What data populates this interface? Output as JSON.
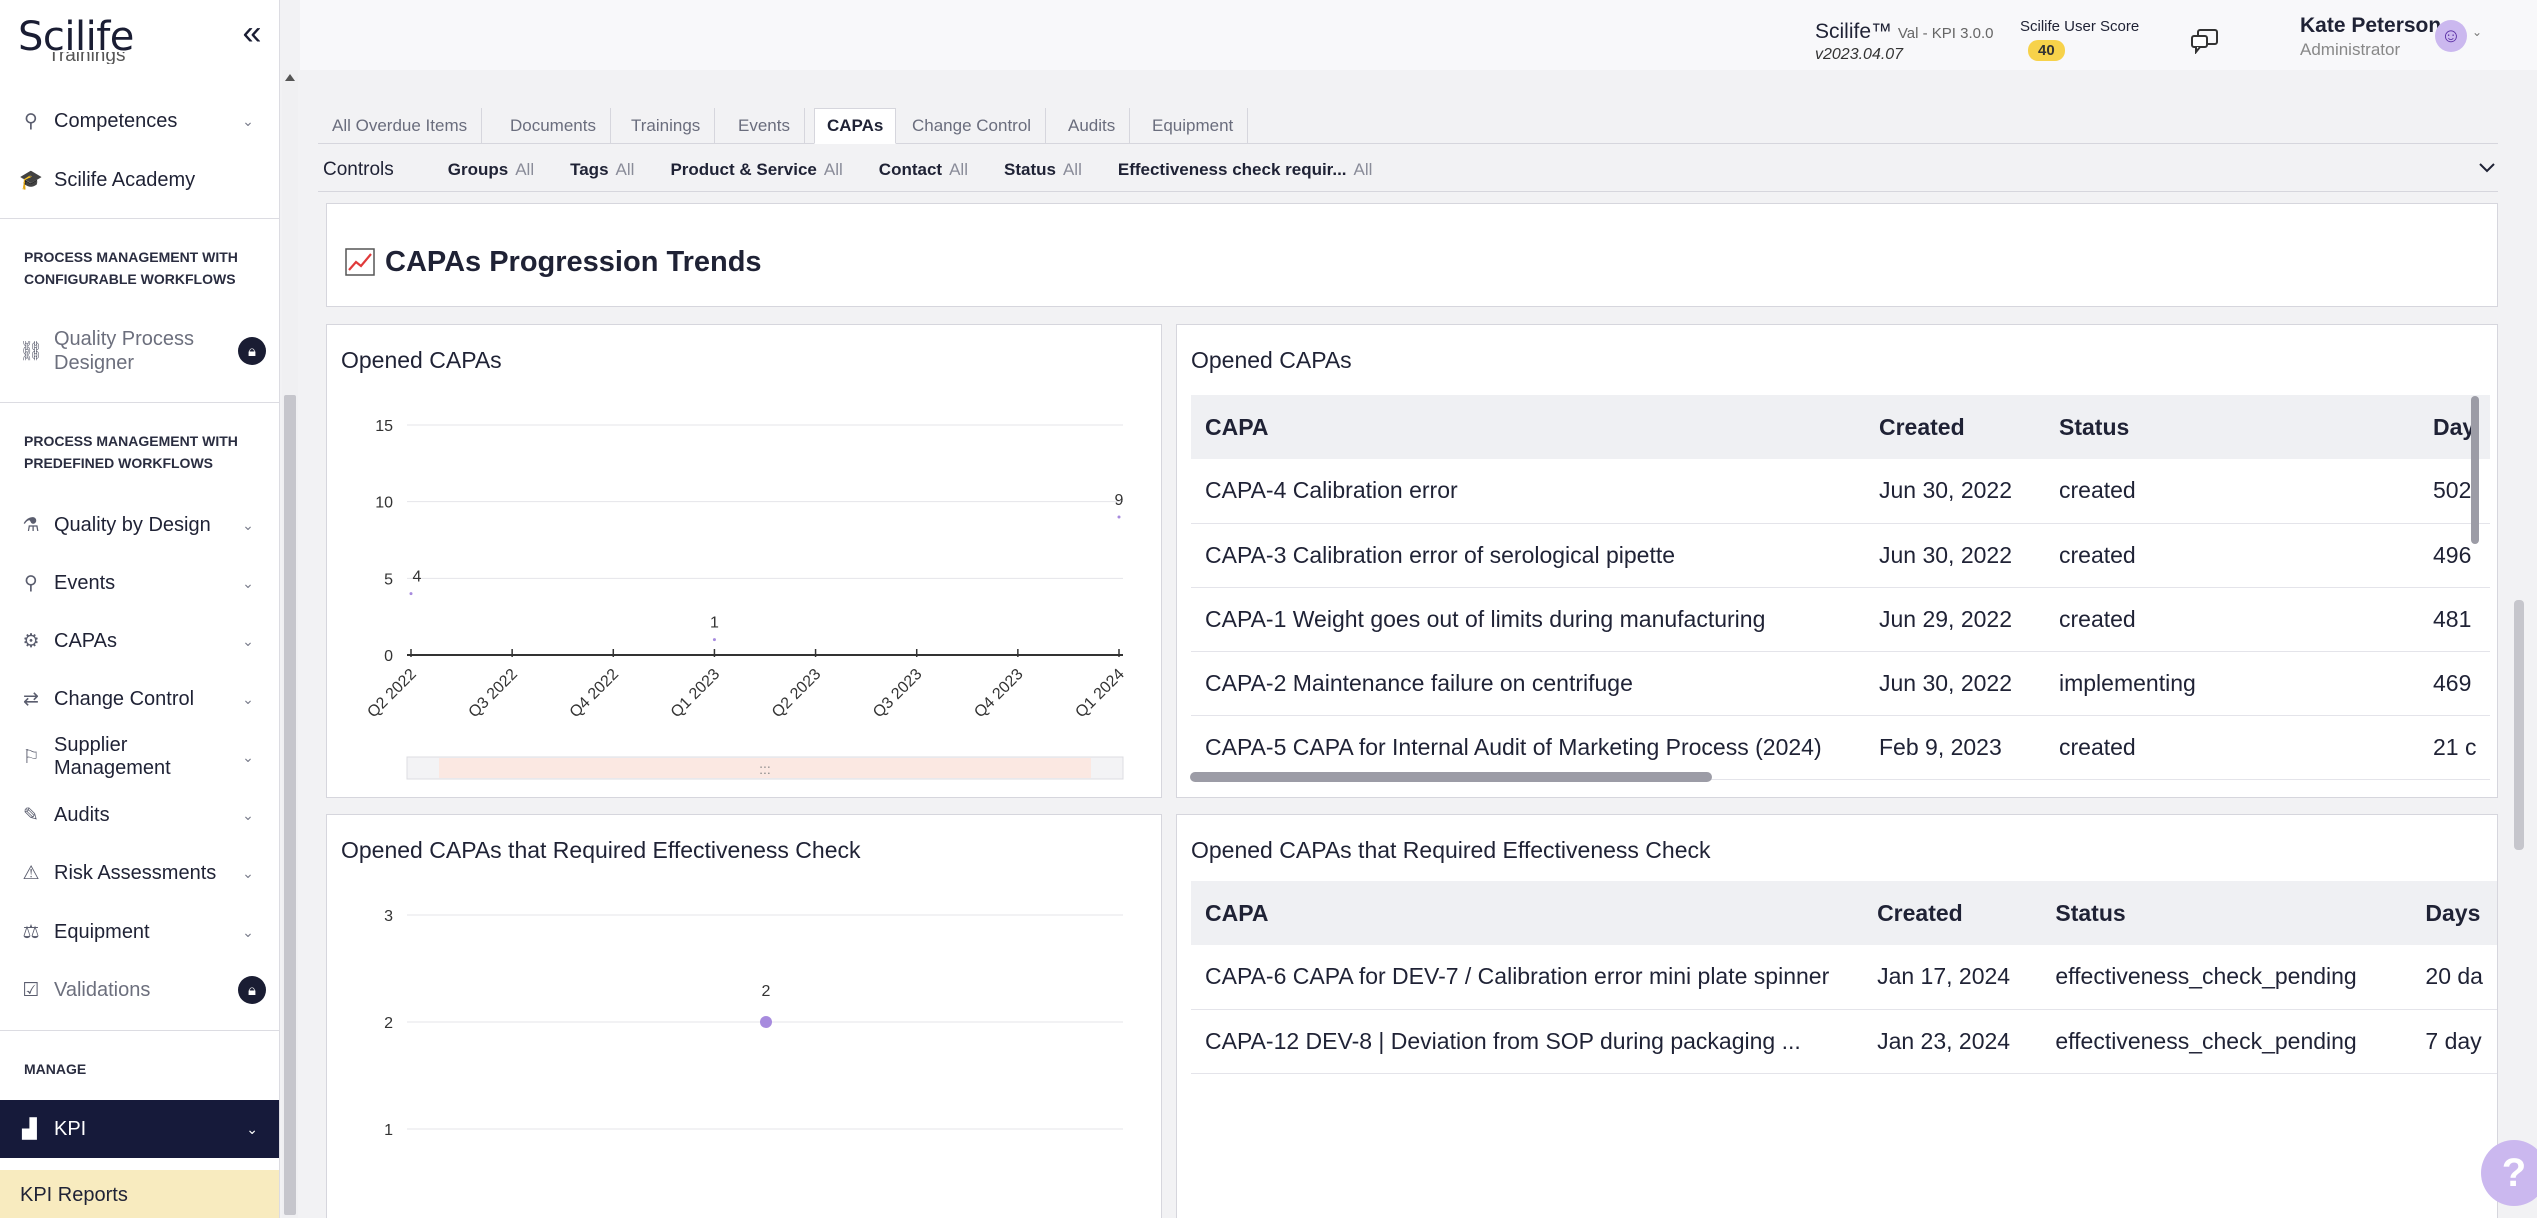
{
  "app": {
    "logo": "Scilife",
    "version_line": "Scilife™",
    "version_sub": "Val - KPI 3.0.0",
    "version_date": "v2023.04.07",
    "score_label": "Scilife User Score",
    "score_value": "40"
  },
  "user": {
    "name": "Kate Peterson",
    "role": "Administrator"
  },
  "sidebar": {
    "cut_item": "Trainings",
    "items": [
      {
        "label": "Competences",
        "icon": "competences-icon"
      },
      {
        "label": "Scilife Academy",
        "icon": "academy-icon"
      }
    ],
    "section1": "PROCESS MANAGEMENT WITH CONFIGURABLE WORKFLOWS",
    "qpd_line1": "Quality Process",
    "qpd_line2": "Designer",
    "section2": "PROCESS MANAGEMENT WITH PREDEFINED WORKFLOWS",
    "modules": [
      {
        "label": "Quality by Design"
      },
      {
        "label": "Events"
      },
      {
        "label": "CAPAs"
      },
      {
        "label": "Change Control"
      },
      {
        "label": "Supplier Management"
      },
      {
        "label": "Audits"
      },
      {
        "label": "Risk Assessments"
      },
      {
        "label": "Equipment"
      },
      {
        "label": "Validations"
      }
    ],
    "section3": "MANAGE",
    "kpi": "KPI",
    "kpi_reports": "KPI Reports"
  },
  "tabs": [
    "All Overdue Items",
    "Documents",
    "Trainings",
    "Events",
    "CAPAs",
    "Change Control",
    "Audits",
    "Equipment"
  ],
  "active_tab": "CAPAs",
  "controls": {
    "title": "Controls",
    "filters": [
      {
        "label": "Groups",
        "value": "All"
      },
      {
        "label": "Tags",
        "value": "All"
      },
      {
        "label": "Product & Service",
        "value": "All"
      },
      {
        "label": "Contact",
        "value": "All"
      },
      {
        "label": "Status",
        "value": "All"
      },
      {
        "label": "Effectiveness check requir...",
        "value": "All"
      }
    ]
  },
  "trend_title": "CAPAs Progression Trends",
  "chart1_title": "Opened CAPAs",
  "chart2_title": "Opened CAPAs that Required Effectiveness Check",
  "table1": {
    "title": "Opened CAPAs",
    "columns": [
      "CAPA",
      "Created",
      "Status",
      "Day"
    ],
    "rows": [
      [
        "CAPA-4 Calibration error",
        "Jun 30, 2022",
        "created",
        "502"
      ],
      [
        "CAPA-3 Calibration error of serological pipette",
        "Jun 30, 2022",
        "created",
        "496"
      ],
      [
        "CAPA-1 Weight goes out of limits during manufacturing",
        "Jun 29, 2022",
        "created",
        "481"
      ],
      [
        "CAPA-2 Maintenance failure on centrifuge",
        "Jun 30, 2022",
        "implementing",
        "469"
      ],
      [
        "CAPA-5 CAPA for Internal Audit of Marketing Process (2024)",
        "Feb 9, 2023",
        "created",
        "21 c"
      ]
    ]
  },
  "table2": {
    "title": "Opened CAPAs that Required Effectiveness Check",
    "columns": [
      "CAPA",
      "Created",
      "Status",
      "Days"
    ],
    "rows": [
      [
        "CAPA-6 CAPA for DEV-7 / Calibration error mini plate spinner",
        "Jan 17, 2024",
        "effectiveness_check_pending",
        "20 da"
      ],
      [
        "CAPA-12 DEV-8  |  Deviation from SOP during packaging ...",
        "Jan 23, 2024",
        "effectiveness_check_pending",
        "7 day"
      ]
    ]
  },
  "help_label": "?",
  "chart_data": [
    {
      "type": "line",
      "title": "Opened CAPAs",
      "categories": [
        "Q2 2022",
        "Q3 2022",
        "Q4 2022",
        "Q1 2023",
        "Q2 2023",
        "Q3 2023",
        "Q4 2023",
        "Q1 2024"
      ],
      "values": [
        4,
        0,
        0,
        1,
        0,
        0,
        0,
        9
      ],
      "data_labels": [
        "4",
        "",
        "",
        "1",
        "",
        "",
        "",
        "9"
      ],
      "yticks": [
        0,
        5,
        10,
        15
      ],
      "ylim": [
        0,
        15
      ],
      "grid": true,
      "color": "#a78bde"
    },
    {
      "type": "line",
      "title": "Opened CAPAs that Required Effectiveness Check",
      "points": [
        {
          "y": 2,
          "label": "2"
        }
      ],
      "yticks": [
        1,
        2,
        3
      ],
      "ylim": [
        0,
        3
      ],
      "grid": true,
      "color": "#a78bde"
    }
  ]
}
